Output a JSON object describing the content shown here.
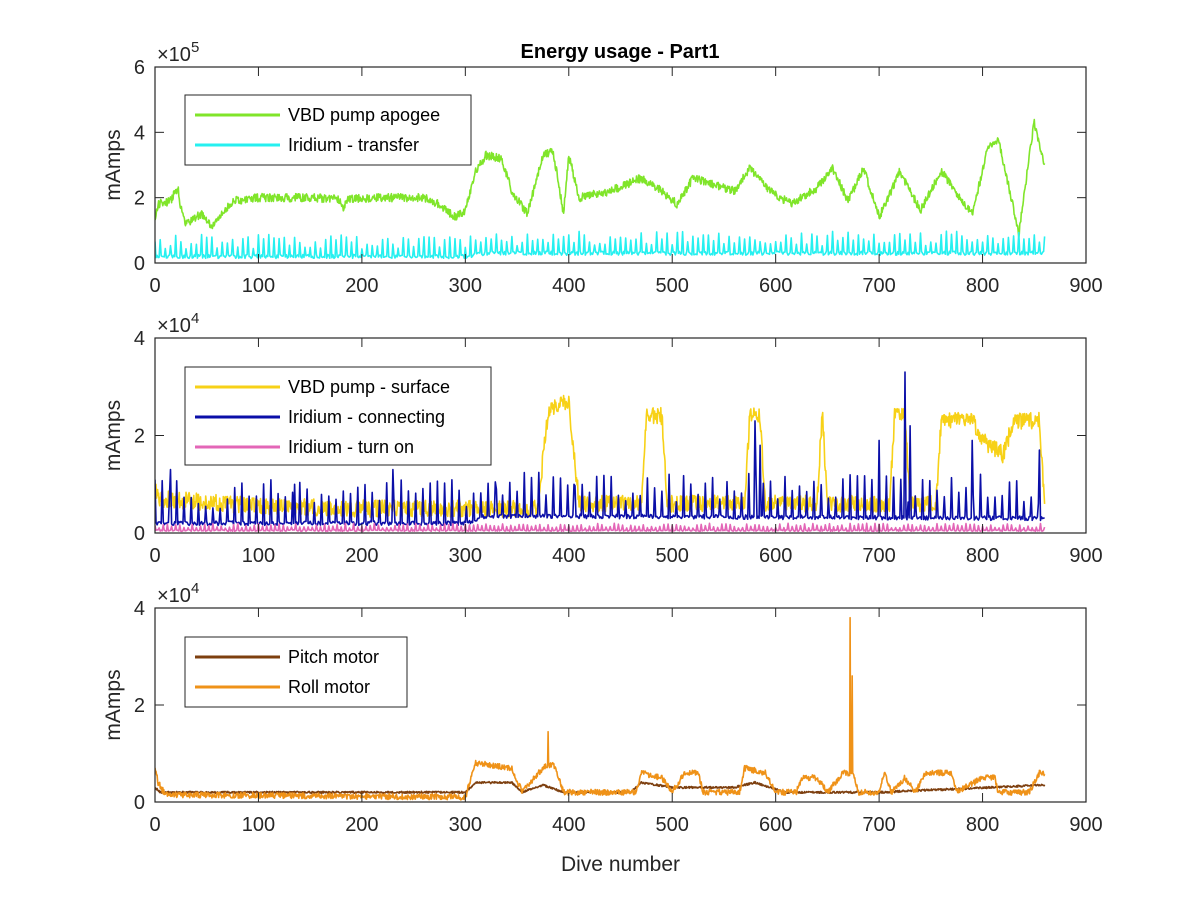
{
  "figure": {
    "title": "Energy usage - Part1"
  },
  "chart_data": [
    {
      "type": "line",
      "title": "Energy usage - Part1",
      "xlabel": "",
      "ylabel": "mAmps",
      "xlim": [
        0,
        900
      ],
      "ylim": [
        0,
        6
      ],
      "y_multiplier": "× 10^5",
      "y_exponent_base": "×10",
      "y_exponent_power": "5",
      "xticks": [
        0,
        100,
        200,
        300,
        400,
        500,
        600,
        700,
        800,
        900
      ],
      "yticks": [
        0,
        2,
        4,
        6
      ],
      "grid": false,
      "legend_position": "top-left",
      "series": [
        {
          "name": "VBD pump apogee",
          "color": "#80e52a",
          "style": "noisy-band",
          "noise": 0.25,
          "points": [
            [
              0,
              1.3
            ],
            [
              3,
              1.8
            ],
            [
              15,
              1.9
            ],
            [
              22,
              2.3
            ],
            [
              25,
              1.7
            ],
            [
              30,
              1.2
            ],
            [
              45,
              1.5
            ],
            [
              55,
              1.1
            ],
            [
              65,
              1.5
            ],
            [
              75,
              1.9
            ],
            [
              100,
              2.0
            ],
            [
              150,
              2.0
            ],
            [
              178,
              1.95
            ],
            [
              182,
              1.7
            ],
            [
              186,
              1.95
            ],
            [
              220,
              2.0
            ],
            [
              260,
              2.0
            ],
            [
              275,
              1.8
            ],
            [
              290,
              1.4
            ],
            [
              300,
              1.6
            ],
            [
              310,
              2.8
            ],
            [
              320,
              3.3
            ],
            [
              335,
              3.2
            ],
            [
              345,
              2.2
            ],
            [
              360,
              1.5
            ],
            [
              375,
              3.3
            ],
            [
              385,
              3.4
            ],
            [
              395,
              1.5
            ],
            [
              400,
              3.3
            ],
            [
              410,
              2.0
            ],
            [
              440,
              2.2
            ],
            [
              470,
              2.6
            ],
            [
              490,
              2.2
            ],
            [
              505,
              1.8
            ],
            [
              520,
              2.6
            ],
            [
              540,
              2.4
            ],
            [
              560,
              2.2
            ],
            [
              575,
              2.9
            ],
            [
              595,
              2.2
            ],
            [
              615,
              1.8
            ],
            [
              640,
              2.3
            ],
            [
              655,
              2.9
            ],
            [
              670,
              1.9
            ],
            [
              685,
              2.9
            ],
            [
              700,
              1.4
            ],
            [
              720,
              2.8
            ],
            [
              740,
              1.6
            ],
            [
              760,
              2.8
            ],
            [
              790,
              1.5
            ],
            [
              805,
              3.5
            ],
            [
              815,
              3.8
            ],
            [
              825,
              2.4
            ],
            [
              835,
              0.9
            ],
            [
              845,
              3.2
            ],
            [
              850,
              4.3
            ],
            [
              860,
              3.0
            ]
          ]
        },
        {
          "name": "Iridium - transfer",
          "color": "#26f0f0",
          "style": "spiky",
          "base": 0.2,
          "spike": 0.45,
          "period": 5,
          "points": [
            [
              0,
              0.2
            ],
            [
              300,
              0.2
            ],
            [
              320,
              0.3
            ],
            [
              860,
              0.3
            ]
          ]
        }
      ]
    },
    {
      "type": "line",
      "title": "",
      "xlabel": "",
      "ylabel": "mAmps",
      "xlim": [
        0,
        900
      ],
      "ylim": [
        0,
        4
      ],
      "y_multiplier": "× 10^4",
      "y_exponent_base": "×10",
      "y_exponent_power": "4",
      "xticks": [
        0,
        100,
        200,
        300,
        400,
        500,
        600,
        700,
        800,
        900
      ],
      "yticks": [
        0,
        2,
        4
      ],
      "grid": false,
      "legend_position": "top-left",
      "series": [
        {
          "name": "VBD pump - surface",
          "color": "#f7d117",
          "style": "noisy-band",
          "noise": 0.35,
          "points": [
            [
              0,
              0.9
            ],
            [
              5,
              0.7
            ],
            [
              100,
              0.55
            ],
            [
              200,
              0.5
            ],
            [
              300,
              0.5
            ],
            [
              370,
              0.5
            ],
            [
              380,
              2.5
            ],
            [
              400,
              2.7
            ],
            [
              410,
              0.6
            ],
            [
              470,
              0.6
            ],
            [
              475,
              2.4
            ],
            [
              490,
              2.4
            ],
            [
              495,
              0.6
            ],
            [
              570,
              0.6
            ],
            [
              575,
              2.4
            ],
            [
              585,
              2.4
            ],
            [
              590,
              0.6
            ],
            [
              640,
              0.6
            ],
            [
              645,
              2.5
            ],
            [
              650,
              0.6
            ],
            [
              710,
              0.6
            ],
            [
              715,
              2.4
            ],
            [
              725,
              2.4
            ],
            [
              730,
              0.6
            ],
            [
              755,
              0.6
            ],
            [
              760,
              2.3
            ],
            [
              790,
              2.3
            ],
            [
              800,
              1.9
            ],
            [
              820,
              1.6
            ],
            [
              830,
              2.3
            ],
            [
              855,
              2.3
            ],
            [
              860,
              0.5
            ]
          ]
        },
        {
          "name": "Iridium - connecting",
          "color": "#0b0fa8",
          "style": "spiky",
          "base": 0.15,
          "spike": 0.6,
          "period": 7,
          "points": [
            [
              0,
              0.2
            ],
            [
              300,
              0.2
            ],
            [
              320,
              0.35
            ],
            [
              860,
              0.3
            ]
          ],
          "peaks": [
            [
              15,
              1.3
            ],
            [
              135,
              1.0
            ],
            [
              230,
              1.3
            ],
            [
              330,
              0.9
            ],
            [
              405,
              1.0
            ],
            [
              580,
              2.3
            ],
            [
              585,
              1.8
            ],
            [
              700,
              1.9
            ],
            [
              725,
              3.3
            ],
            [
              730,
              2.2
            ],
            [
              790,
              1.9
            ],
            [
              855,
              1.7
            ]
          ]
        },
        {
          "name": "Iridium - turn on",
          "color": "#e366b7",
          "style": "spiky",
          "base": 0.05,
          "spike": 0.1,
          "period": 4,
          "points": [
            [
              0,
              0.05
            ],
            [
              860,
              0.05
            ]
          ]
        }
      ]
    },
    {
      "type": "line",
      "title": "",
      "xlabel": "Dive number",
      "ylabel": "mAmps",
      "xlim": [
        0,
        900
      ],
      "ylim": [
        0,
        4
      ],
      "y_multiplier": "× 10^4",
      "y_exponent_base": "×10",
      "y_exponent_power": "4",
      "xticks": [
        0,
        100,
        200,
        300,
        400,
        500,
        600,
        700,
        800,
        900
      ],
      "yticks": [
        0,
        2,
        4
      ],
      "grid": false,
      "legend_position": "top-left",
      "series": [
        {
          "name": "Pitch motor",
          "color": "#7d3f0f",
          "style": "noisy-band",
          "noise": 0.04,
          "points": [
            [
              0,
              0.3
            ],
            [
              5,
              0.2
            ],
            [
              300,
              0.2
            ],
            [
              310,
              0.4
            ],
            [
              345,
              0.4
            ],
            [
              355,
              0.2
            ],
            [
              375,
              0.35
            ],
            [
              395,
              0.2
            ],
            [
              460,
              0.2
            ],
            [
              470,
              0.4
            ],
            [
              500,
              0.3
            ],
            [
              530,
              0.3
            ],
            [
              560,
              0.3
            ],
            [
              580,
              0.4
            ],
            [
              610,
              0.2
            ],
            [
              700,
              0.2
            ],
            [
              860,
              0.35
            ]
          ]
        },
        {
          "name": "Roll motor",
          "color": "#ef9218",
          "style": "noisy-band",
          "noise": 0.12,
          "points": [
            [
              0,
              0.7
            ],
            [
              3,
              0.4
            ],
            [
              10,
              0.15
            ],
            [
              300,
              0.1
            ],
            [
              310,
              0.8
            ],
            [
              345,
              0.7
            ],
            [
              355,
              0.2
            ],
            [
              375,
              0.7
            ],
            [
              385,
              0.8
            ],
            [
              395,
              0.2
            ],
            [
              465,
              0.2
            ],
            [
              470,
              0.6
            ],
            [
              490,
              0.5
            ],
            [
              500,
              0.2
            ],
            [
              512,
              0.6
            ],
            [
              525,
              0.6
            ],
            [
              530,
              0.2
            ],
            [
              565,
              0.2
            ],
            [
              570,
              0.7
            ],
            [
              590,
              0.6
            ],
            [
              600,
              0.2
            ],
            [
              620,
              0.2
            ],
            [
              625,
              0.5
            ],
            [
              640,
              0.5
            ],
            [
              650,
              0.2
            ],
            [
              665,
              0.6
            ],
            [
              675,
              0.6
            ],
            [
              680,
              0.2
            ],
            [
              700,
              0.2
            ],
            [
              705,
              0.6
            ],
            [
              712,
              0.2
            ],
            [
              725,
              0.5
            ],
            [
              735,
              0.2
            ],
            [
              745,
              0.6
            ],
            [
              770,
              0.6
            ],
            [
              775,
              0.2
            ],
            [
              800,
              0.5
            ],
            [
              812,
              0.5
            ],
            [
              815,
              0.2
            ],
            [
              845,
              0.2
            ],
            [
              855,
              0.6
            ],
            [
              860,
              0.6
            ]
          ],
          "peaks": [
            [
              380,
              1.45
            ],
            [
              672,
              3.8
            ],
            [
              674,
              2.6
            ]
          ]
        }
      ]
    }
  ]
}
